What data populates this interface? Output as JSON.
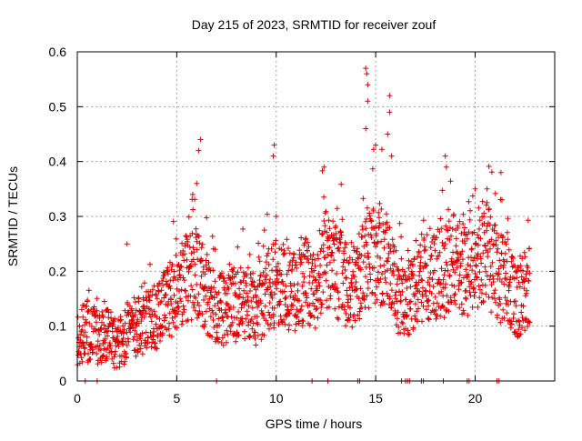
{
  "chart_data": {
    "type": "scatter",
    "title": "Day 215 of 2023, SRMTID for receiver zouf",
    "xlabel": "GPS time / hours",
    "ylabel": "SRMTID / TECUs",
    "xlim": [
      0,
      24
    ],
    "ylim": [
      0,
      0.6
    ],
    "xticks": [
      0,
      5,
      10,
      15,
      20
    ],
    "yticks": [
      0,
      0.1,
      0.2,
      0.3,
      0.4,
      0.5,
      0.6
    ],
    "ytick_labels": [
      "0",
      "0.1",
      "0.2",
      "0.3",
      "0.4",
      "0.5",
      "0.6"
    ],
    "grid": true,
    "marker": "+",
    "series_color": "#dd0000",
    "trend": [
      [
        0.0,
        0.08
      ],
      [
        0.5,
        0.09
      ],
      [
        1.0,
        0.08
      ],
      [
        1.5,
        0.08
      ],
      [
        2.0,
        0.07
      ],
      [
        2.5,
        0.09
      ],
      [
        3.0,
        0.1
      ],
      [
        3.5,
        0.11
      ],
      [
        4.0,
        0.12
      ],
      [
        4.5,
        0.14
      ],
      [
        5.0,
        0.16
      ],
      [
        5.5,
        0.19
      ],
      [
        6.0,
        0.2
      ],
      [
        6.5,
        0.16
      ],
      [
        7.0,
        0.13
      ],
      [
        7.5,
        0.13
      ],
      [
        8.0,
        0.14
      ],
      [
        8.5,
        0.15
      ],
      [
        9.0,
        0.13
      ],
      [
        9.5,
        0.16
      ],
      [
        10.0,
        0.18
      ],
      [
        10.5,
        0.17
      ],
      [
        11.0,
        0.16
      ],
      [
        11.5,
        0.18
      ],
      [
        12.0,
        0.17
      ],
      [
        12.5,
        0.22
      ],
      [
        13.0,
        0.2
      ],
      [
        13.5,
        0.18
      ],
      [
        14.0,
        0.17
      ],
      [
        14.5,
        0.22
      ],
      [
        15.0,
        0.24
      ],
      [
        15.5,
        0.22
      ],
      [
        16.0,
        0.17
      ],
      [
        16.5,
        0.14
      ],
      [
        17.0,
        0.17
      ],
      [
        17.5,
        0.2
      ],
      [
        18.0,
        0.19
      ],
      [
        18.5,
        0.2
      ],
      [
        19.0,
        0.22
      ],
      [
        19.5,
        0.2
      ],
      [
        20.0,
        0.22
      ],
      [
        20.5,
        0.24
      ],
      [
        21.0,
        0.2
      ],
      [
        21.5,
        0.18
      ],
      [
        22.0,
        0.15
      ],
      [
        22.5,
        0.16
      ],
      [
        22.7,
        0.18
      ]
    ],
    "spikes": [
      [
        2.5,
        0.25
      ],
      [
        6.2,
        0.44
      ],
      [
        6.1,
        0.42
      ],
      [
        6.0,
        0.36
      ],
      [
        5.8,
        0.34
      ],
      [
        9.9,
        0.43
      ],
      [
        9.85,
        0.41
      ],
      [
        10.0,
        0.3
      ],
      [
        12.4,
        0.39
      ],
      [
        14.5,
        0.57
      ],
      [
        14.55,
        0.56
      ],
      [
        14.6,
        0.54
      ],
      [
        14.6,
        0.51
      ],
      [
        14.5,
        0.46
      ],
      [
        15.0,
        0.43
      ],
      [
        15.7,
        0.52
      ],
      [
        15.7,
        0.49
      ],
      [
        15.6,
        0.45
      ],
      [
        15.8,
        0.41
      ],
      [
        18.5,
        0.41
      ],
      [
        18.55,
        0.39
      ],
      [
        20.0,
        0.35
      ],
      [
        20.6,
        0.35
      ],
      [
        21.3,
        0.38
      ],
      [
        21.35,
        0.33
      ]
    ],
    "baseline_x": [
      0.4,
      1.0,
      7.0,
      11.8,
      12.6,
      14.1,
      14.2,
      16.3,
      16.5,
      16.6,
      16.7,
      17.3,
      17.4,
      18.4,
      19.6,
      19.7,
      21.1,
      21.2
    ]
  }
}
